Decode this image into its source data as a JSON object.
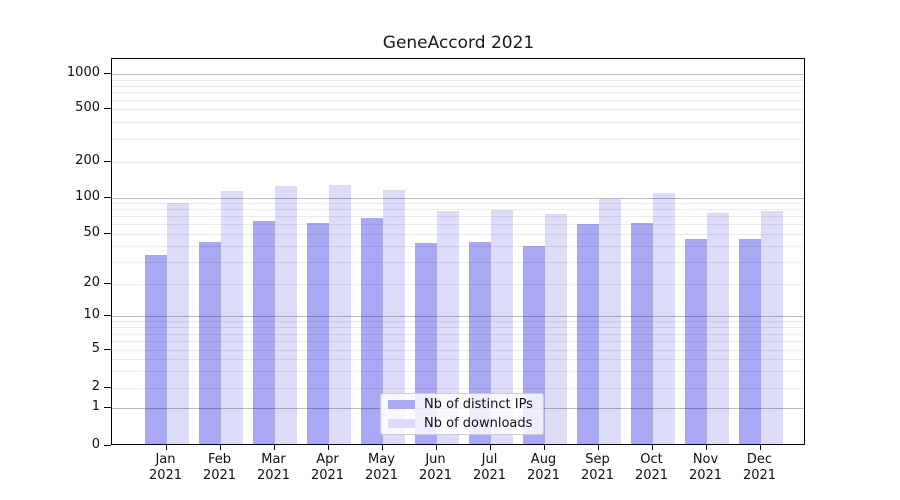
{
  "figure": {
    "title": "GeneAccord 2021"
  },
  "chart_data": {
    "type": "bar",
    "title": "GeneAccord 2021",
    "categories": [
      "Jan 2021",
      "Feb 2021",
      "Mar 2021",
      "Apr 2021",
      "May 2021",
      "Jun 2021",
      "Jul 2021",
      "Aug 2021",
      "Sep 2021",
      "Oct 2021",
      "Nov 2021",
      "Dec 2021"
    ],
    "category_line1": [
      "Jan",
      "Feb",
      "Mar",
      "Apr",
      "May",
      "Jun",
      "Jul",
      "Aug",
      "Sep",
      "Oct",
      "Nov",
      "Dec"
    ],
    "category_line2": "2021",
    "series": [
      {
        "name": "Nb of distinct IPs",
        "color": "#a8a8f5",
        "values": [
          34,
          43,
          64,
          61,
          68,
          42,
          43,
          40,
          60,
          61,
          45,
          45
        ]
      },
      {
        "name": "Nb of downloads",
        "color": "#dcdcf9",
        "values": [
          90,
          113,
          125,
          128,
          116,
          78,
          79,
          73,
          97,
          110,
          75,
          78
        ]
      }
    ],
    "y_axis": {
      "scale": "symlog",
      "tick_values": [
        0,
        1,
        2,
        5,
        10,
        20,
        50,
        100,
        200,
        500,
        1000
      ],
      "ylim": [
        0,
        1300
      ]
    },
    "x_axis": {
      "label": "",
      "tick_count": 12
    },
    "legend": {
      "position": "lower-center"
    },
    "grid": {
      "horizontal_major": "on",
      "horizontal_minor": "on",
      "drawn_above_bars": true
    }
  }
}
